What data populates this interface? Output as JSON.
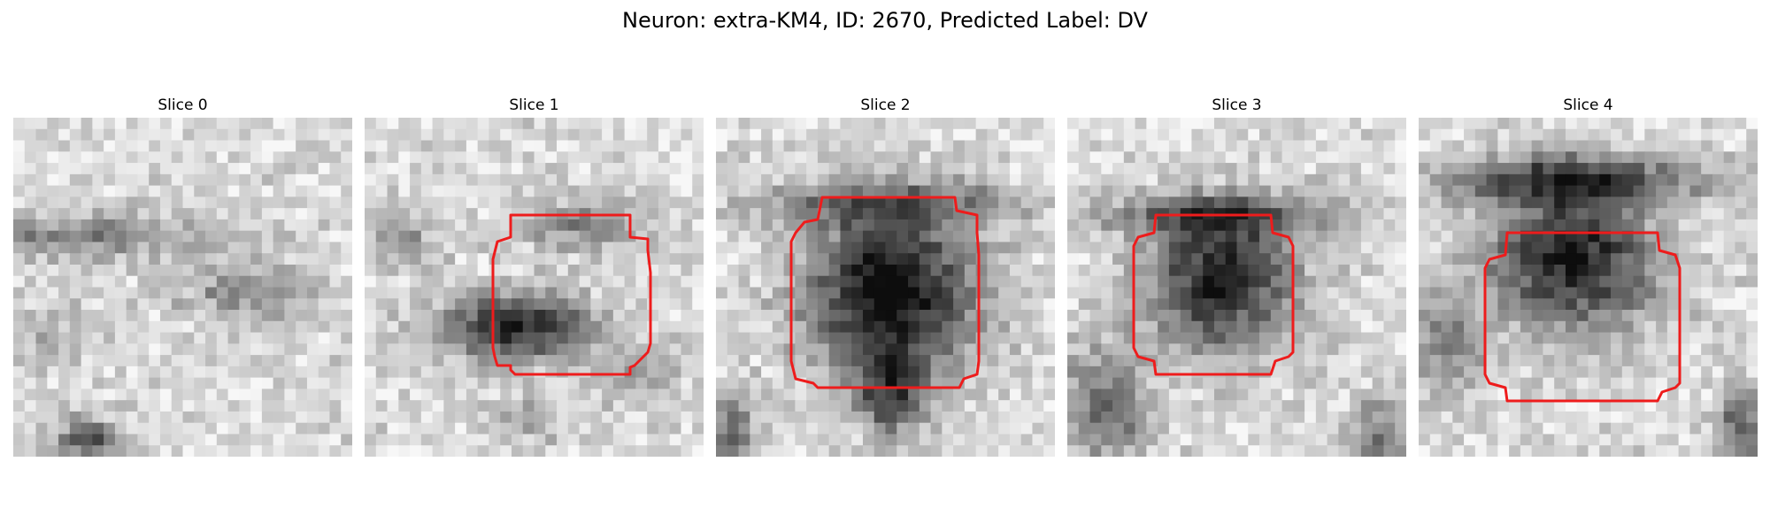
{
  "figure": {
    "title": "Neuron: extra-KM4, ID: 2670, Predicted Label: DV"
  },
  "panels": [
    {
      "title": "Slice 0",
      "contour": false
    },
    {
      "title": "Slice 1",
      "contour": true
    },
    {
      "title": "Slice 2",
      "contour": true
    },
    {
      "title": "Slice 3",
      "contour": true
    },
    {
      "title": "Slice 4",
      "contour": true
    }
  ],
  "colors": {
    "contour": "#ee1c1c",
    "colormap": "gray"
  }
}
